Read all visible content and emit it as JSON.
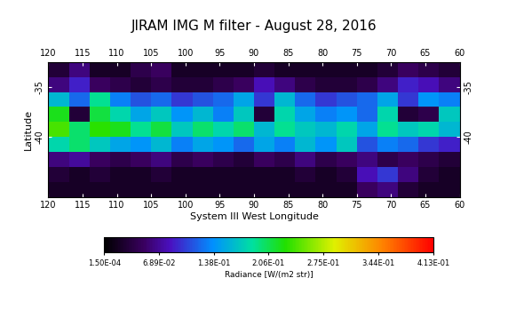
{
  "chart_data": {
    "type": "heatmap",
    "title": "JIRAM IMG M filter - August 28, 2016",
    "x_label": "System III West Longitude",
    "y_label": "Latitude",
    "xlim": [
      120,
      60
    ],
    "xticks": [
      120,
      115,
      110,
      105,
      100,
      95,
      90,
      85,
      80,
      75,
      70,
      65,
      60
    ],
    "ylim": [
      -46,
      -32.5
    ],
    "yticks": [
      -35,
      -40
    ],
    "lon_edges": [
      120,
      117,
      114,
      111,
      108,
      105,
      102,
      99,
      96,
      93,
      90,
      87,
      84,
      81,
      78,
      75,
      72,
      69,
      66,
      63,
      60
    ],
    "lat_edges": [
      -32.5,
      -34,
      -35.5,
      -37,
      -38.5,
      -40,
      -41.5,
      -43,
      -44.5,
      -46
    ],
    "cells": [
      [
        0.03,
        0.06,
        0.02,
        0.02,
        0.04,
        0.05,
        0.02,
        0.02,
        0.02,
        0.02,
        0.03,
        0.02,
        0.02,
        0.02,
        0.02,
        0.02,
        0.03,
        0.05,
        0.04,
        0.03
      ],
      [
        0.06,
        0.09,
        0.05,
        0.04,
        0.03,
        0.04,
        0.03,
        0.03,
        0.04,
        0.05,
        0.08,
        0.06,
        0.04,
        0.03,
        0.03,
        0.04,
        0.06,
        0.09,
        0.08,
        0.06
      ],
      [
        0.16,
        0.12,
        0.19,
        0.13,
        0.11,
        0.12,
        0.1,
        0.11,
        0.12,
        0.15,
        0.1,
        0.16,
        0.12,
        0.1,
        0.11,
        0.12,
        0.15,
        0.1,
        0.14,
        0.13
      ],
      [
        0.22,
        0.03,
        0.21,
        0.18,
        0.15,
        0.17,
        0.14,
        0.16,
        0.13,
        0.17,
        0.03,
        0.18,
        0.15,
        0.13,
        0.14,
        0.12,
        0.18,
        0.03,
        0.04,
        0.17
      ],
      [
        0.24,
        0.2,
        0.23,
        0.22,
        0.19,
        0.21,
        0.17,
        0.2,
        0.18,
        0.2,
        0.16,
        0.19,
        0.17,
        0.16,
        0.18,
        0.15,
        0.19,
        0.17,
        0.18,
        0.16
      ],
      [
        0.18,
        0.2,
        0.17,
        0.15,
        0.14,
        0.16,
        0.13,
        0.15,
        0.14,
        0.12,
        0.15,
        0.13,
        0.16,
        0.14,
        0.17,
        0.11,
        0.13,
        0.12,
        0.1,
        0.09
      ],
      [
        0.06,
        0.07,
        0.05,
        0.04,
        0.05,
        0.06,
        0.04,
        0.05,
        0.04,
        0.03,
        0.05,
        0.04,
        0.06,
        0.04,
        0.05,
        0.06,
        0.04,
        0.05,
        0.04,
        0.03
      ],
      [
        0.03,
        0.02,
        0.03,
        0.02,
        0.02,
        0.03,
        0.02,
        0.02,
        0.02,
        0.02,
        0.02,
        0.02,
        0.03,
        0.02,
        0.03,
        0.08,
        0.1,
        0.06,
        0.03,
        0.02
      ],
      [
        0.02,
        0.02,
        0.02,
        0.02,
        0.02,
        0.02,
        0.02,
        0.02,
        0.02,
        0.02,
        0.02,
        0.02,
        0.02,
        0.02,
        0.02,
        0.05,
        0.06,
        0.03,
        0.02,
        0.02
      ]
    ],
    "colorbar": {
      "label": "Radiance [W/(m2 str)]",
      "range": [
        0.00015,
        0.413
      ],
      "ticks": [
        {
          "value": 0.00015,
          "label": "1.50E-04"
        },
        {
          "value": 0.0689,
          "label": "6.89E-02"
        },
        {
          "value": 0.138,
          "label": "1.38E-01"
        },
        {
          "value": 0.206,
          "label": "2.06E-01"
        },
        {
          "value": 0.275,
          "label": "2.75E-01"
        },
        {
          "value": 0.344,
          "label": "3.44E-01"
        },
        {
          "value": 0.413,
          "label": "4.13E-01"
        }
      ]
    }
  }
}
